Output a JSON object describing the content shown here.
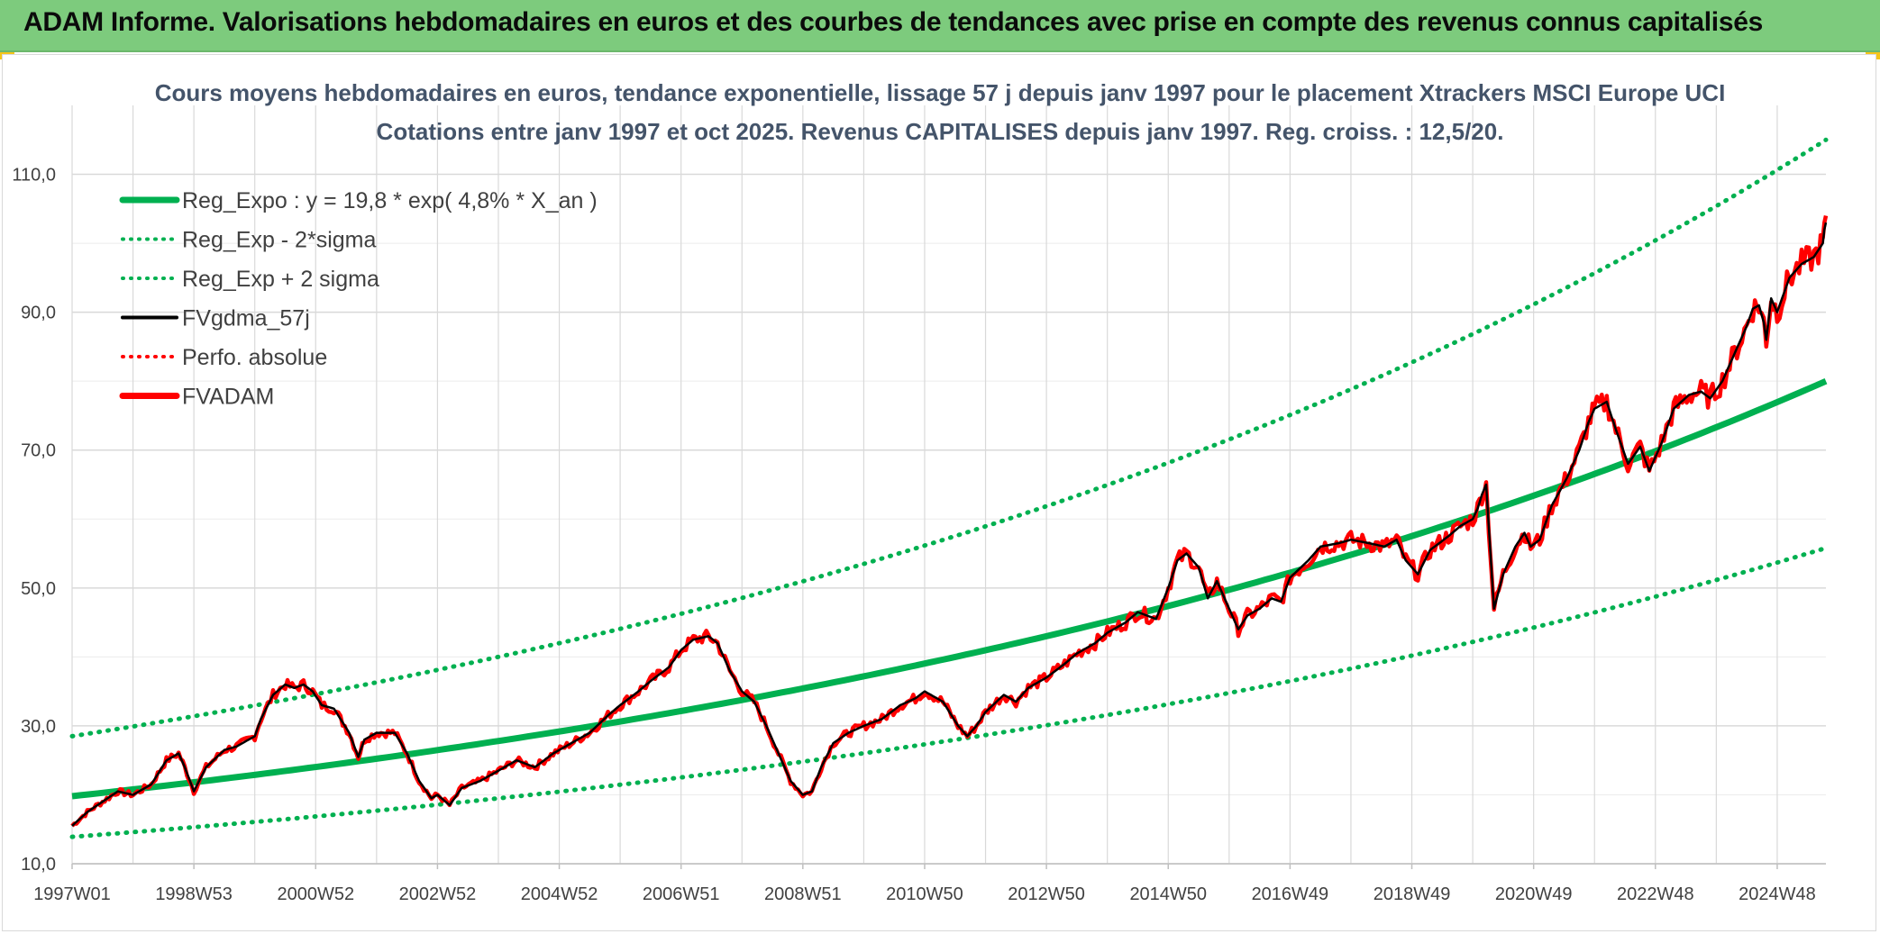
{
  "banner": {
    "title": "ADAM Informe. Valorisations hebdomadaires en euros et des courbes de tendances avec prise en compte des revenus connus capitalisés"
  },
  "colors": {
    "banner_bg": "#7dcb7d",
    "regression": "#00b050",
    "smoothed": "#000000",
    "price": "#ff0000",
    "perfo": "#c00000",
    "grid": "#d9d9d9",
    "title": "#44546a"
  },
  "chart_data": {
    "type": "line",
    "title": "Cours moyens hebdomadaires en euros, tendance exponentielle, lissage 57 j depuis janv 1997 pour le placement Xtrackers MSCI Europe UCI",
    "subtitle": "Cotations entre janv 1997 et oct 2025. Revenus CAPITALISES depuis janv 1997. Reg. croiss. : 12,5/20.",
    "xlabel": "",
    "ylabel": "",
    "x_range": [
      1997.0,
      2025.8
    ],
    "ylim": [
      10,
      120
    ],
    "y_ticks": [
      10,
      30,
      50,
      70,
      90,
      110
    ],
    "y_tick_labels": [
      "10,0",
      "30,0",
      "50,0",
      "70,0",
      "90,0",
      "110,0"
    ],
    "x_tick_labels": [
      "1997W01",
      "1998W53",
      "2000W52",
      "2002W52",
      "2004W52",
      "2006W51",
      "2008W51",
      "2010W50",
      "2012W50",
      "2014W50",
      "2016W49",
      "2018W49",
      "2020W49",
      "2022W48",
      "2024W48"
    ],
    "x_tick_positions": [
      1997.0,
      1999.0,
      2001.0,
      2003.0,
      2005.0,
      2007.0,
      2009.0,
      2011.0,
      2013.0,
      2015.0,
      2017.0,
      2019.0,
      2021.0,
      2023.0,
      2025.0
    ],
    "grid": true,
    "legend_position": "top-left",
    "legend": [
      {
        "label": "Reg_Expo : y = 19,8 * exp( 4,8% *  X_an )",
        "style": "solid-thick",
        "color": "#00b050"
      },
      {
        "label": "Reg_Exp - 2*sigma",
        "style": "dotted",
        "color": "#00b050"
      },
      {
        "label": "Reg_Exp + 2 sigma",
        "style": "dotted",
        "color": "#00b050"
      },
      {
        "label": "FVgdma_57j",
        "style": "solid",
        "color": "#000000"
      },
      {
        "label": "Perfo. absolue",
        "style": "dotted",
        "color": "#ff0000"
      },
      {
        "label": "FVADAM",
        "style": "solid-thick",
        "color": "#ff0000"
      }
    ],
    "series": [
      {
        "name": "Reg_Expo : y = 19,8 * exp( 4,8% *  X_an )",
        "kind": "regression",
        "start_value": 19.8,
        "end_value": 80.0
      },
      {
        "name": "Reg_Exp - 2*sigma",
        "kind": "regression_lower",
        "start_value": 13.9,
        "end_value": 55.8
      },
      {
        "name": "Reg_Exp + 2 sigma",
        "kind": "regression_upper",
        "start_value": 28.5,
        "end_value": 115.0
      },
      {
        "name": "FVADAM",
        "kind": "price",
        "x": [
          1997.0,
          1997.25,
          1997.5,
          1997.75,
          1998.0,
          1998.3,
          1998.55,
          1998.75,
          1998.85,
          1999.0,
          1999.2,
          1999.5,
          1999.7,
          1999.9,
          2000.0,
          2000.1,
          2000.3,
          2000.5,
          2000.65,
          2000.8,
          2000.95,
          2001.1,
          2001.3,
          2001.55,
          2001.7,
          2001.8,
          2002.0,
          2002.3,
          2002.5,
          2002.7,
          2002.9,
          2003.0,
          2003.2,
          2003.4,
          2003.7,
          2004.0,
          2004.3,
          2004.6,
          2004.9,
          2005.2,
          2005.5,
          2005.8,
          2006.0,
          2006.3,
          2006.5,
          2006.8,
          2007.0,
          2007.2,
          2007.45,
          2007.6,
          2007.8,
          2008.0,
          2008.2,
          2008.4,
          2008.6,
          2008.8,
          2009.0,
          2009.15,
          2009.3,
          2009.5,
          2009.75,
          2010.0,
          2010.3,
          2010.6,
          2010.85,
          2011.0,
          2011.3,
          2011.55,
          2011.7,
          2011.85,
          2012.0,
          2012.3,
          2012.5,
          2012.7,
          2013.0,
          2013.3,
          2013.5,
          2013.8,
          2014.0,
          2014.3,
          2014.5,
          2014.8,
          2015.0,
          2015.15,
          2015.3,
          2015.5,
          2015.65,
          2015.8,
          2016.0,
          2016.15,
          2016.3,
          2016.5,
          2016.7,
          2016.85,
          2017.0,
          2017.3,
          2017.5,
          2017.8,
          2018.0,
          2018.3,
          2018.55,
          2018.75,
          2018.9,
          2019.1,
          2019.3,
          2019.6,
          2019.8,
          2020.0,
          2020.08,
          2020.15,
          2020.22,
          2020.35,
          2020.5,
          2020.7,
          2020.85,
          2020.95,
          2021.1,
          2021.3,
          2021.55,
          2021.75,
          2021.9,
          2022.0,
          2022.2,
          2022.35,
          2022.55,
          2022.75,
          2022.9,
          2023.1,
          2023.3,
          2023.55,
          2023.75,
          2023.9,
          2024.1,
          2024.3,
          2024.5,
          2024.6,
          2024.7,
          2024.78,
          2024.82,
          2024.9,
          2025.0,
          2025.2,
          2025.4,
          2025.6,
          2025.75,
          2025.8
        ],
        "values": [
          15.5,
          17.5,
          19.0,
          20.5,
          20.0,
          21.5,
          25.0,
          26.0,
          24.0,
          20.5,
          24.0,
          26.5,
          27.0,
          28.0,
          28.5,
          31.0,
          34.5,
          36.0,
          35.5,
          36.0,
          35.0,
          33.0,
          32.5,
          29.0,
          25.5,
          28.0,
          29.0,
          29.0,
          26.0,
          22.0,
          19.5,
          20.0,
          18.5,
          21.0,
          22.0,
          23.5,
          25.0,
          24.0,
          26.0,
          27.5,
          29.0,
          31.5,
          33.0,
          35.0,
          36.5,
          38.5,
          41.0,
          42.5,
          43.0,
          42.0,
          38.0,
          35.0,
          33.5,
          30.0,
          26.0,
          22.0,
          20.0,
          20.5,
          24.0,
          27.5,
          29.0,
          30.0,
          31.0,
          33.0,
          34.0,
          35.0,
          33.5,
          30.0,
          28.5,
          30.0,
          32.0,
          34.5,
          33.5,
          35.5,
          37.0,
          39.0,
          40.5,
          42.0,
          43.5,
          45.0,
          46.5,
          45.5,
          50.0,
          54.0,
          55.0,
          53.0,
          48.5,
          51.0,
          47.0,
          44.0,
          46.0,
          47.0,
          48.5,
          48.0,
          51.5,
          54.0,
          56.0,
          56.5,
          57.0,
          56.5,
          56.0,
          57.0,
          54.0,
          52.0,
          55.5,
          57.5,
          59.0,
          60.0,
          61.5,
          63.5,
          65.0,
          47.0,
          52.0,
          56.0,
          58.0,
          56.0,
          57.0,
          62.0,
          66.0,
          70.0,
          74.0,
          76.0,
          77.0,
          73.0,
          68.0,
          70.5,
          67.0,
          71.0,
          76.0,
          78.0,
          78.5,
          77.5,
          80.0,
          84.0,
          88.0,
          90.5,
          91.0,
          88.5,
          86.0,
          92.0,
          90.0,
          95.0,
          97.0,
          98.0,
          100.0,
          104.0
        ]
      }
    ]
  }
}
